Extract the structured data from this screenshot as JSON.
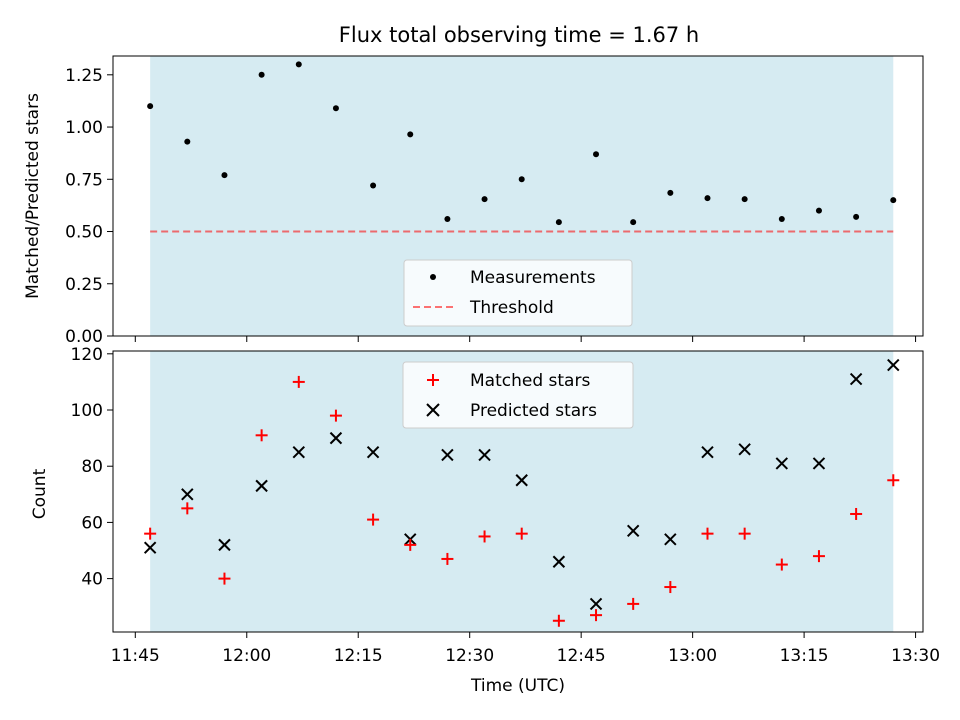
{
  "title": "Flux total observing time = 1.67 h",
  "colors": {
    "shade": "#add8e6",
    "measurement": "#000000",
    "threshold": "#ff0000",
    "matched": "#ff0000",
    "predicted": "#000000"
  },
  "chart_data": [
    {
      "type": "scatter",
      "panel": "top",
      "ylabel": "Matched/Predicted stars",
      "ylim": [
        0,
        1.34
      ],
      "yticks": [
        "0.00",
        "0.25",
        "0.50",
        "0.75",
        "1.00",
        "1.25"
      ],
      "xlim": [
        "11:42",
        "13:31"
      ],
      "shaded_span": [
        "11:47",
        "13:27"
      ],
      "threshold": 0.5,
      "legend": {
        "placement": "lower center",
        "entries": [
          "Measurements",
          "Threshold"
        ]
      },
      "series": [
        {
          "name": "Measurements",
          "x": [
            "11:47",
            "11:52",
            "11:57",
            "12:02",
            "12:07",
            "12:12",
            "12:17",
            "12:22",
            "12:27",
            "12:32",
            "12:37",
            "12:42",
            "12:47",
            "12:52",
            "12:57",
            "13:02",
            "13:07",
            "13:12",
            "13:17",
            "13:22",
            "13:27"
          ],
          "values": [
            1.1,
            0.93,
            0.77,
            1.25,
            1.3,
            1.09,
            0.72,
            0.965,
            0.56,
            0.655,
            0.75,
            0.545,
            0.87,
            0.545,
            0.685,
            0.66,
            0.655,
            0.56,
            0.6,
            0.57,
            0.65
          ]
        }
      ]
    },
    {
      "type": "scatter",
      "panel": "bottom",
      "xlabel": "Time (UTC)",
      "ylabel": "Count",
      "ylim": [
        21,
        121
      ],
      "yticks": [
        "40",
        "60",
        "80",
        "100",
        "120"
      ],
      "xlim": [
        "11:42",
        "13:31"
      ],
      "xticks": [
        "11:45",
        "12:00",
        "12:15",
        "12:30",
        "12:45",
        "13:00",
        "13:15",
        "13:30"
      ],
      "shaded_span": [
        "11:47",
        "13:27"
      ],
      "legend": {
        "placement": "upper center",
        "entries": [
          "Matched stars",
          "Predicted stars"
        ]
      },
      "x": [
        "11:47",
        "11:52",
        "11:57",
        "12:02",
        "12:07",
        "12:12",
        "12:17",
        "12:22",
        "12:27",
        "12:32",
        "12:37",
        "12:42",
        "12:47",
        "12:52",
        "12:57",
        "13:02",
        "13:07",
        "13:12",
        "13:17",
        "13:22",
        "13:27"
      ],
      "series": [
        {
          "name": "Matched stars",
          "values": [
            56,
            65,
            40,
            91,
            110,
            98,
            61,
            52,
            47,
            55,
            56,
            25,
            27,
            31,
            37,
            56,
            56,
            45,
            48,
            63,
            75
          ]
        },
        {
          "name": "Predicted stars",
          "values": [
            51,
            70,
            52,
            73,
            85,
            90,
            85,
            54,
            84,
            84,
            75,
            46,
            31,
            57,
            54,
            85,
            86,
            81,
            81,
            111,
            116
          ]
        }
      ]
    }
  ]
}
